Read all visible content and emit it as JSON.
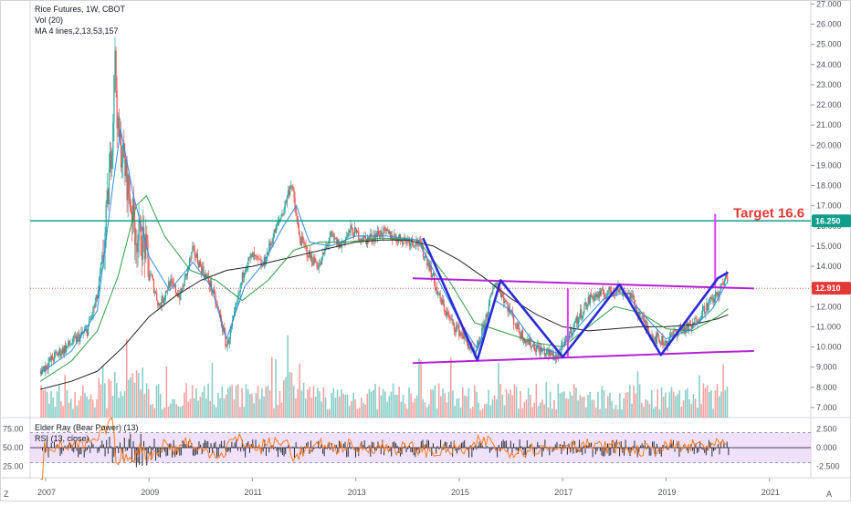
{
  "header": {
    "symbol_line": "Rice Futures, 1W, CBOT",
    "vol_line": "Vol (20)",
    "ma_line": "MA 4 lines,2,13,53,157"
  },
  "indicator": {
    "elder_line": "Elder Ray (Bear Power) (13)",
    "rsi_line": "RSI (13, close)"
  },
  "corner": {
    "left": "Z",
    "right": "A"
  },
  "annotation": {
    "target_text": "Target 16.6"
  },
  "colors": {
    "up": "#26a69a",
    "down": "#ef5350",
    "pattern": "#2a2ad8",
    "channel": "#b521d6",
    "resistance": "#0f9d8c",
    "target": "#e53935",
    "rsi": "#ff7a1a",
    "ma_fast": "#2b8de8",
    "ma_mid": "#2e9e44",
    "ma_slow": "#222222",
    "last_price": "#e53935"
  },
  "chart_data": {
    "type": "line",
    "title": "Rice Futures, 1W, CBOT",
    "x_ticks": [
      "2007",
      "2009",
      "2011",
      "2013",
      "2015",
      "2017",
      "2019",
      "2021"
    ],
    "y_ticks": [
      "27.000",
      "26.000",
      "25.000",
      "24.000",
      "23.000",
      "22.000",
      "21.000",
      "20.000",
      "19.000",
      "18.000",
      "17.000",
      "16.000",
      "15.000",
      "14.000",
      "13.000",
      "12.000",
      "11.000",
      "10.000",
      "9.000",
      "8.000",
      "7.000"
    ],
    "ylim": [
      6.5,
      27.2
    ],
    "resistance": {
      "value": 16.25,
      "label": "16.250"
    },
    "last_price": {
      "value": 12.91,
      "label": "12.910"
    },
    "target": 16.6,
    "price_path": [
      [
        2006.9,
        8.8
      ],
      [
        2007.2,
        9.6
      ],
      [
        2007.5,
        10.2
      ],
      [
        2007.8,
        10.8
      ],
      [
        2008.0,
        12.5
      ],
      [
        2008.15,
        15.5
      ],
      [
        2008.3,
        21.0
      ],
      [
        2008.33,
        24.9
      ],
      [
        2008.4,
        20.5
      ],
      [
        2008.5,
        19.3
      ],
      [
        2008.6,
        17.8
      ],
      [
        2008.75,
        15.5
      ],
      [
        2008.9,
        15.2
      ],
      [
        2009.0,
        13.8
      ],
      [
        2009.2,
        12.0
      ],
      [
        2009.4,
        13.2
      ],
      [
        2009.6,
        12.5
      ],
      [
        2009.85,
        14.8
      ],
      [
        2010.0,
        14.0
      ],
      [
        2010.2,
        13.0
      ],
      [
        2010.4,
        11.2
      ],
      [
        2010.5,
        10.0
      ],
      [
        2010.65,
        11.5
      ],
      [
        2010.85,
        14.0
      ],
      [
        2011.0,
        14.5
      ],
      [
        2011.2,
        14.0
      ],
      [
        2011.4,
        15.5
      ],
      [
        2011.6,
        16.8
      ],
      [
        2011.75,
        18.2
      ],
      [
        2011.9,
        15.5
      ],
      [
        2012.1,
        14.5
      ],
      [
        2012.3,
        14.0
      ],
      [
        2012.5,
        15.5
      ],
      [
        2012.7,
        15.0
      ],
      [
        2012.9,
        15.8
      ],
      [
        2013.2,
        15.3
      ],
      [
        2013.5,
        15.7
      ],
      [
        2013.8,
        15.4
      ],
      [
        2014.2,
        15.2
      ],
      [
        2014.4,
        14.2
      ],
      [
        2014.6,
        12.5
      ],
      [
        2014.85,
        11.2
      ],
      [
        2015.1,
        10.5
      ],
      [
        2015.3,
        9.5
      ],
      [
        2015.45,
        10.8
      ],
      [
        2015.7,
        13.3
      ],
      [
        2015.9,
        12.2
      ],
      [
        2016.15,
        10.8
      ],
      [
        2016.35,
        10.2
      ],
      [
        2016.6,
        9.8
      ],
      [
        2016.9,
        9.5
      ],
      [
        2017.2,
        11.0
      ],
      [
        2017.55,
        12.5
      ],
      [
        2017.8,
        12.6
      ],
      [
        2018.05,
        12.9
      ],
      [
        2018.3,
        12.6
      ],
      [
        2018.5,
        11.5
      ],
      [
        2018.75,
        10.5
      ],
      [
        2019.0,
        10.2
      ],
      [
        2019.2,
        10.8
      ],
      [
        2019.5,
        11.0
      ],
      [
        2019.7,
        11.8
      ],
      [
        2019.85,
        12.2
      ],
      [
        2020.0,
        12.6
      ],
      [
        2020.15,
        13.4
      ],
      [
        2020.2,
        13.6
      ]
    ],
    "ma_fast": [
      [
        2006.9,
        8.7
      ],
      [
        2007.5,
        9.8
      ],
      [
        2008.0,
        11.8
      ],
      [
        2008.3,
        18.0
      ],
      [
        2008.45,
        20.8
      ],
      [
        2008.7,
        17.5
      ],
      [
        2009.0,
        14.5
      ],
      [
        2009.4,
        12.8
      ],
      [
        2009.85,
        14.2
      ],
      [
        2010.2,
        13.0
      ],
      [
        2010.5,
        10.4
      ],
      [
        2010.85,
        13.0
      ],
      [
        2011.2,
        14.1
      ],
      [
        2011.6,
        16.0
      ],
      [
        2011.85,
        17.0
      ],
      [
        2012.1,
        15.2
      ],
      [
        2012.5,
        15.0
      ],
      [
        2013.0,
        15.5
      ],
      [
        2013.6,
        15.5
      ],
      [
        2014.2,
        15.3
      ],
      [
        2014.6,
        13.3
      ],
      [
        2015.0,
        11.3
      ],
      [
        2015.35,
        9.9
      ],
      [
        2015.7,
        12.3
      ],
      [
        2016.0,
        11.8
      ],
      [
        2016.5,
        10.0
      ],
      [
        2016.9,
        9.7
      ],
      [
        2017.3,
        11.0
      ],
      [
        2017.8,
        12.4
      ],
      [
        2018.2,
        12.7
      ],
      [
        2018.6,
        11.5
      ],
      [
        2019.0,
        10.4
      ],
      [
        2019.5,
        10.9
      ],
      [
        2019.9,
        11.9
      ],
      [
        2020.2,
        13.3
      ]
    ],
    "ma_mid": [
      [
        2006.9,
        8.3
      ],
      [
        2007.5,
        9.3
      ],
      [
        2008.0,
        10.8
      ],
      [
        2008.4,
        13.5
      ],
      [
        2008.75,
        17.0
      ],
      [
        2008.95,
        17.5
      ],
      [
        2009.3,
        15.5
      ],
      [
        2009.8,
        13.8
      ],
      [
        2010.3,
        13.3
      ],
      [
        2010.8,
        12.3
      ],
      [
        2011.3,
        13.3
      ],
      [
        2011.8,
        14.8
      ],
      [
        2012.3,
        15.2
      ],
      [
        2012.8,
        15.2
      ],
      [
        2013.5,
        15.4
      ],
      [
        2014.2,
        15.3
      ],
      [
        2014.8,
        13.3
      ],
      [
        2015.3,
        11.2
      ],
      [
        2015.9,
        10.7
      ],
      [
        2016.5,
        10.2
      ],
      [
        2017.0,
        10.0
      ],
      [
        2017.5,
        11.0
      ],
      [
        2018.0,
        12.0
      ],
      [
        2018.5,
        11.7
      ],
      [
        2019.0,
        10.9
      ],
      [
        2019.5,
        10.8
      ],
      [
        2020.0,
        11.5
      ],
      [
        2020.2,
        11.9
      ]
    ],
    "ma_slow": [
      [
        2006.9,
        7.9
      ],
      [
        2007.5,
        8.3
      ],
      [
        2008.0,
        8.8
      ],
      [
        2008.5,
        10.0
      ],
      [
        2009.0,
        11.5
      ],
      [
        2009.5,
        12.5
      ],
      [
        2010.0,
        13.3
      ],
      [
        2010.5,
        13.8
      ],
      [
        2011.0,
        14.0
      ],
      [
        2011.5,
        14.3
      ],
      [
        2012.0,
        14.6
      ],
      [
        2012.5,
        14.9
      ],
      [
        2013.0,
        15.2
      ],
      [
        2013.5,
        15.3
      ],
      [
        2014.0,
        15.3
      ],
      [
        2014.5,
        15.0
      ],
      [
        2015.0,
        14.3
      ],
      [
        2015.5,
        13.4
      ],
      [
        2016.0,
        12.4
      ],
      [
        2016.5,
        11.6
      ],
      [
        2017.0,
        11.0
      ],
      [
        2017.5,
        10.8
      ],
      [
        2018.0,
        10.9
      ],
      [
        2018.5,
        11.0
      ],
      [
        2019.0,
        11.0
      ],
      [
        2019.5,
        11.1
      ],
      [
        2020.0,
        11.4
      ],
      [
        2020.2,
        11.6
      ]
    ],
    "pattern_zigzag": [
      [
        2014.3,
        15.4
      ],
      [
        2015.35,
        9.35
      ],
      [
        2015.8,
        13.3
      ],
      [
        2017.0,
        9.5
      ],
      [
        2018.1,
        13.1
      ],
      [
        2018.9,
        9.6
      ],
      [
        2020.0,
        13.4
      ],
      [
        2020.2,
        13.7
      ]
    ],
    "channel_upper": [
      [
        2014.1,
        13.4
      ],
      [
        2020.0,
        12.95
      ],
      [
        2020.7,
        12.9
      ]
    ],
    "channel_lower": [
      [
        2014.1,
        9.2
      ],
      [
        2020.0,
        9.75
      ],
      [
        2020.7,
        9.8
      ]
    ],
    "measured_moves": [
      {
        "x": 2017.1,
        "from": 9.5,
        "to": 12.9
      },
      {
        "x": 2019.95,
        "from": 13.0,
        "to": 16.6
      }
    ],
    "indicator": {
      "right_ticks": [
        "2.500",
        "0.000",
        "-2.500"
      ],
      "left_ticks": [
        "75.00",
        "50.00",
        "25.00"
      ],
      "right_range": [
        -4.0,
        4.0
      ],
      "rsi_band": [
        30,
        70
      ]
    }
  }
}
